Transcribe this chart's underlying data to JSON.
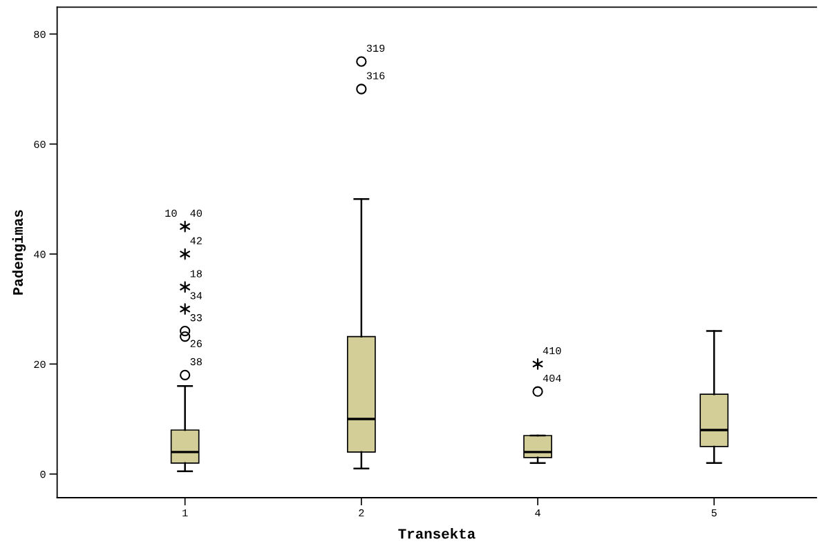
{
  "chart_data": {
    "type": "box",
    "xlabel": "Transekta",
    "ylabel": "Padengimas",
    "categories": [
      "1",
      "2",
      "4",
      "5"
    ],
    "color": "#d3cd98",
    "boxes": [
      {
        "low": 0.5,
        "q1": 2,
        "median": 4,
        "q3": 8,
        "high": 16
      },
      {
        "low": 1,
        "q1": 4,
        "median": 10,
        "q3": 25,
        "high": 50
      },
      {
        "low": 2,
        "q1": 3,
        "median": 4,
        "q3": 7,
        "high": 7
      },
      {
        "low": 2,
        "q1": 5,
        "median": 8,
        "q3": 14.5,
        "high": 26
      }
    ],
    "series": [
      {
        "type": "scatter",
        "marker": "circle",
        "color": "#000000",
        "x": [
          "1",
          "1",
          "1",
          "2",
          "2",
          "4"
        ],
        "values": [
          18,
          25,
          26,
          70,
          75,
          15
        ]
      },
      {
        "type": "scatter",
        "marker": "cross",
        "color": "#000000",
        "x": [
          "1",
          "1",
          "1",
          "1",
          "4"
        ],
        "values": [
          30,
          34,
          40,
          45,
          20
        ]
      }
    ],
    "annotations": [
      {
        "text": "38",
        "x": "1",
        "y": 18
      },
      {
        "text": "26",
        "x": "1",
        "y": 25
      },
      {
        "text": "33",
        "x": "1",
        "y": 26
      },
      {
        "text": "34",
        "x": "1",
        "y": 30
      },
      {
        "text": "18",
        "x": "1",
        "y": 34
      },
      {
        "text": "42",
        "x": "1",
        "y": 40
      },
      {
        "text": "10",
        "x": "1",
        "y": 45
      },
      {
        "text": "40",
        "x": "1",
        "y": 45
      },
      {
        "text": "316",
        "x": "2",
        "y": 70
      },
      {
        "text": "319",
        "x": "2",
        "y": 75
      },
      {
        "text": "404",
        "x": "4",
        "y": 15
      },
      {
        "text": "410",
        "x": "4",
        "y": 20
      }
    ],
    "ylim": [
      -4.3,
      84.9
    ],
    "yticks": [
      0,
      20,
      40,
      60,
      80
    ],
    "grid": false,
    "legend": false
  }
}
